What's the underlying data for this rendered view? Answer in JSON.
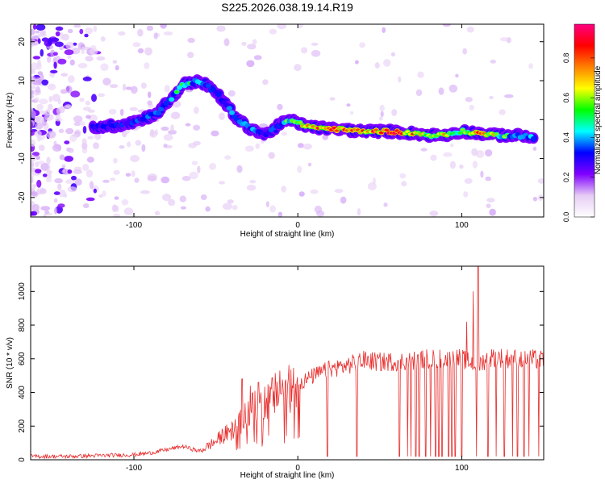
{
  "title": "S225.2026.038.19.14.R19",
  "chart_data": [
    {
      "type": "heatmap",
      "xlabel": "Height of straight line (km)",
      "ylabel": "Frequency (Hz)",
      "xlim": [
        -163,
        150
      ],
      "ylim": [
        -25,
        24.5
      ],
      "xticks": [
        -100,
        0,
        100
      ],
      "yticks": [
        -20,
        -10,
        0,
        10,
        20
      ],
      "colorbar": {
        "label": "Normalized spectral amplitude",
        "range": [
          0,
          0.97
        ],
        "ticks": [
          0,
          0.2,
          0.4,
          0.6,
          0.8
        ],
        "tick_labels": [
          "0.0",
          "0.2",
          "0.4",
          "0.6",
          "0.8"
        ],
        "colors": [
          "#ffffff",
          "#e6ccf5",
          "#8000ff",
          "#0000ff",
          "#00ffff",
          "#00ff00",
          "#ffff00",
          "#ff8000",
          "#ff0000",
          "#ff0080"
        ]
      },
      "ridge": {
        "x": [
          -125,
          -110,
          -95,
          -85,
          -78,
          -70,
          -60,
          -50,
          -42,
          -37,
          -30,
          -20,
          -10,
          -5,
          0,
          10,
          25,
          40,
          55,
          70,
          80,
          90,
          100,
          110,
          120,
          130,
          145
        ],
        "frequency": [
          -2,
          -1.5,
          0,
          2,
          5,
          9,
          10,
          7,
          3,
          0,
          -2,
          -4,
          -1,
          0,
          -1,
          -2,
          -2.5,
          -3,
          -3,
          -3.5,
          -4,
          -4,
          -3,
          -3.5,
          -4,
          -4,
          -4.5
        ],
        "amplitude": [
          0.45,
          0.4,
          0.45,
          0.45,
          0.5,
          0.55,
          0.5,
          0.4,
          0.5,
          0.55,
          0.5,
          0.45,
          0.5,
          0.6,
          0.7,
          0.85,
          0.9,
          0.85,
          0.9,
          0.85,
          0.6,
          0.8,
          0.6,
          0.85,
          0.7,
          0.5,
          0.5
        ]
      }
    },
    {
      "type": "line",
      "xlabel": "Height of straight line (km)",
      "ylabel": "SNR (10 * v/v)",
      "xlim": [
        -163,
        150
      ],
      "ylim": [
        0,
        1150
      ],
      "xticks": [
        -100,
        0,
        100
      ],
      "yticks": [
        0,
        200,
        400,
        600,
        800,
        1000
      ],
      "color": "#e8302f",
      "series": [
        {
          "x": [
            -163,
            -140,
            -120,
            -100,
            -90,
            -80,
            -70,
            -60,
            -50,
            -45,
            -40,
            -35,
            -30,
            -25,
            -20,
            -15,
            -10,
            -5,
            0,
            10,
            20,
            30,
            40,
            50,
            60,
            70,
            80,
            90,
            100,
            105,
            110,
            115,
            120,
            130,
            140,
            150
          ],
          "y": [
            20,
            20,
            25,
            30,
            40,
            60,
            80,
            50,
            110,
            150,
            170,
            220,
            280,
            320,
            350,
            380,
            400,
            420,
            450,
            500,
            540,
            560,
            590,
            580,
            585,
            590,
            600,
            600,
            600,
            580,
            560,
            600,
            610,
            600,
            600,
            590
          ]
        }
      ],
      "spikes": [
        {
          "x": -34,
          "y": 480
        },
        {
          "x": -29,
          "y": 440
        },
        {
          "x": -24,
          "y": 460
        },
        {
          "x": -11,
          "y": 530
        },
        {
          "x": 110,
          "y": 1150
        },
        {
          "x": 107,
          "y": 1000
        },
        {
          "x": 103,
          "y": 820
        }
      ],
      "dropouts": [
        18,
        36,
        62,
        67,
        69,
        72,
        74,
        78,
        81,
        84,
        86,
        88,
        92,
        94,
        96,
        100,
        109,
        116,
        121,
        126,
        131,
        134,
        138,
        141,
        147
      ]
    }
  ]
}
